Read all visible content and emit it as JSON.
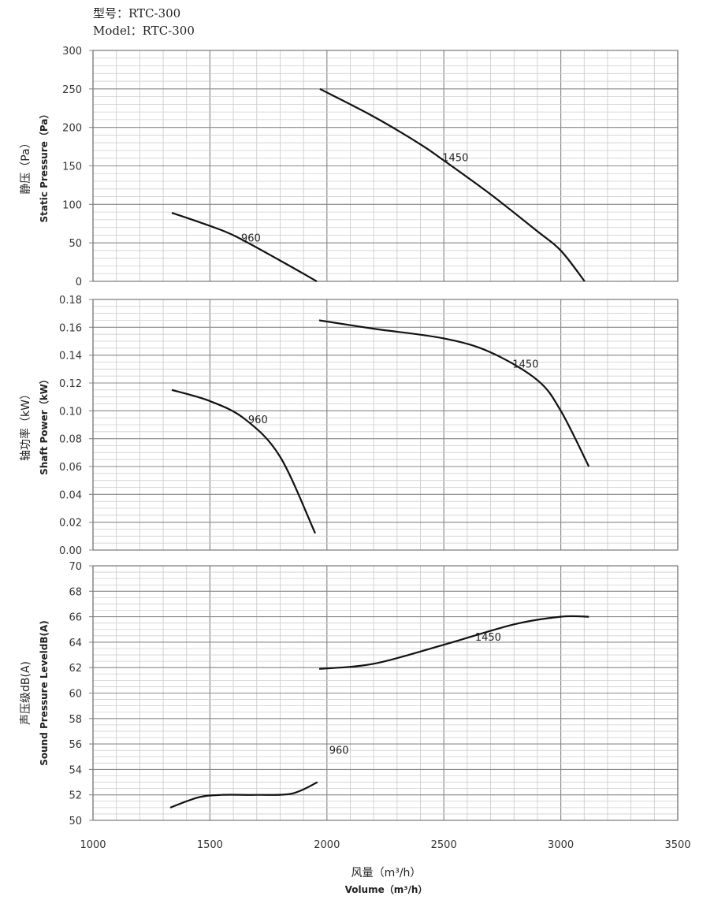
{
  "header": {
    "model_cn": "型号：RTC-300",
    "model_en": "Model：RTC-300"
  },
  "chart_data": [
    {
      "type": "line",
      "title": "",
      "ylabel_cn": "静压（Pa）",
      "ylabel": "Static Pressure（Pa）",
      "ylim": [
        0,
        300
      ],
      "yticks": [
        0,
        50,
        100,
        150,
        200,
        250,
        300
      ],
      "ytick_labels": [
        "0",
        "50",
        "100",
        "150",
        "200",
        "250",
        "300"
      ],
      "xlim": [
        1000,
        3500
      ],
      "grid": true,
      "series": [
        {
          "name": "960",
          "x": [
            1337,
            1500,
            1613,
            1800,
            1957
          ],
          "y": [
            89,
            72,
            58,
            27,
            0
          ]
        },
        {
          "name": "1450",
          "x": [
            1970,
            2200,
            2400,
            2500,
            2700,
            2900,
            3000,
            3102
          ],
          "y": [
            250,
            214,
            178,
            157,
            113,
            65,
            40,
            0
          ]
        }
      ]
    },
    {
      "type": "line",
      "ylabel_cn": "轴功率（kW）",
      "ylabel": "Shaft Power（kW）",
      "ylim": [
        0,
        0.18
      ],
      "yticks": [
        0,
        0.02,
        0.04,
        0.06,
        0.08,
        0.1,
        0.12,
        0.14,
        0.16,
        0.18
      ],
      "ytick_labels": [
        "0.00",
        "0.02",
        "0.04",
        "0.06",
        "0.08",
        "0.10",
        "0.12",
        "0.14",
        "0.16",
        "0.18"
      ],
      "xlim": [
        1000,
        3500
      ],
      "grid": true,
      "series": [
        {
          "name": "960",
          "x": [
            1337,
            1500,
            1650,
            1800,
            1950
          ],
          "y": [
            0.115,
            0.107,
            0.094,
            0.067,
            0.012
          ]
        },
        {
          "name": "1450",
          "x": [
            1967,
            2200,
            2500,
            2700,
            2900,
            3000,
            3120
          ],
          "y": [
            0.165,
            0.159,
            0.152,
            0.142,
            0.122,
            0.1,
            0.06
          ]
        }
      ]
    },
    {
      "type": "line",
      "ylabel_cn": "声压级dB(A)",
      "ylabel": "Sound Pressure LeveldB(A)",
      "ylim": [
        50,
        70
      ],
      "yticks": [
        50,
        52,
        54,
        56,
        58,
        60,
        62,
        64,
        66,
        68,
        70
      ],
      "ytick_labels": [
        "50",
        "52",
        "54",
        "56",
        "58",
        "60",
        "62",
        "64",
        "66",
        "68",
        "70"
      ],
      "xlim": [
        1000,
        3500
      ],
      "xticks": [
        1000,
        1500,
        2000,
        2500,
        3000,
        3500
      ],
      "xtick_labels": [
        "1000",
        "1500",
        "2000",
        "2500",
        "3000",
        "3500"
      ],
      "xlabel_cn": "风量（m³/h）",
      "xlabel": "Volume（m³/h）",
      "grid": true,
      "series": [
        {
          "name": "960",
          "x": [
            1330,
            1450,
            1550,
            1700,
            1850,
            1960
          ],
          "y": [
            51,
            51.8,
            52,
            52,
            52.1,
            53
          ]
        },
        {
          "name": "1450",
          "x": [
            1967,
            2200,
            2500,
            2800,
            3000,
            3120
          ],
          "y": [
            61.9,
            62.3,
            63.8,
            65.4,
            66,
            66
          ]
        }
      ]
    }
  ]
}
